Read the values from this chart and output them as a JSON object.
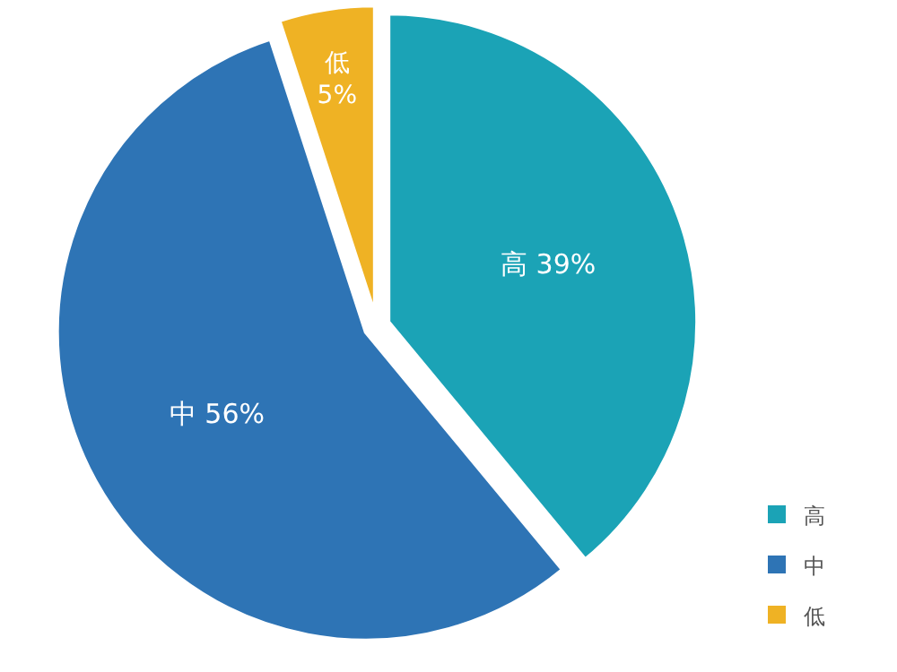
{
  "chart_data": {
    "type": "pie",
    "categories": [
      "高",
      "中",
      "低"
    ],
    "values": [
      39,
      56,
      5
    ],
    "value_labels": [
      "39%",
      "56%",
      "5%"
    ],
    "colors": [
      "#1ba3b6",
      "#2e74b5",
      "#efb224"
    ],
    "legend": "bottom right"
  }
}
